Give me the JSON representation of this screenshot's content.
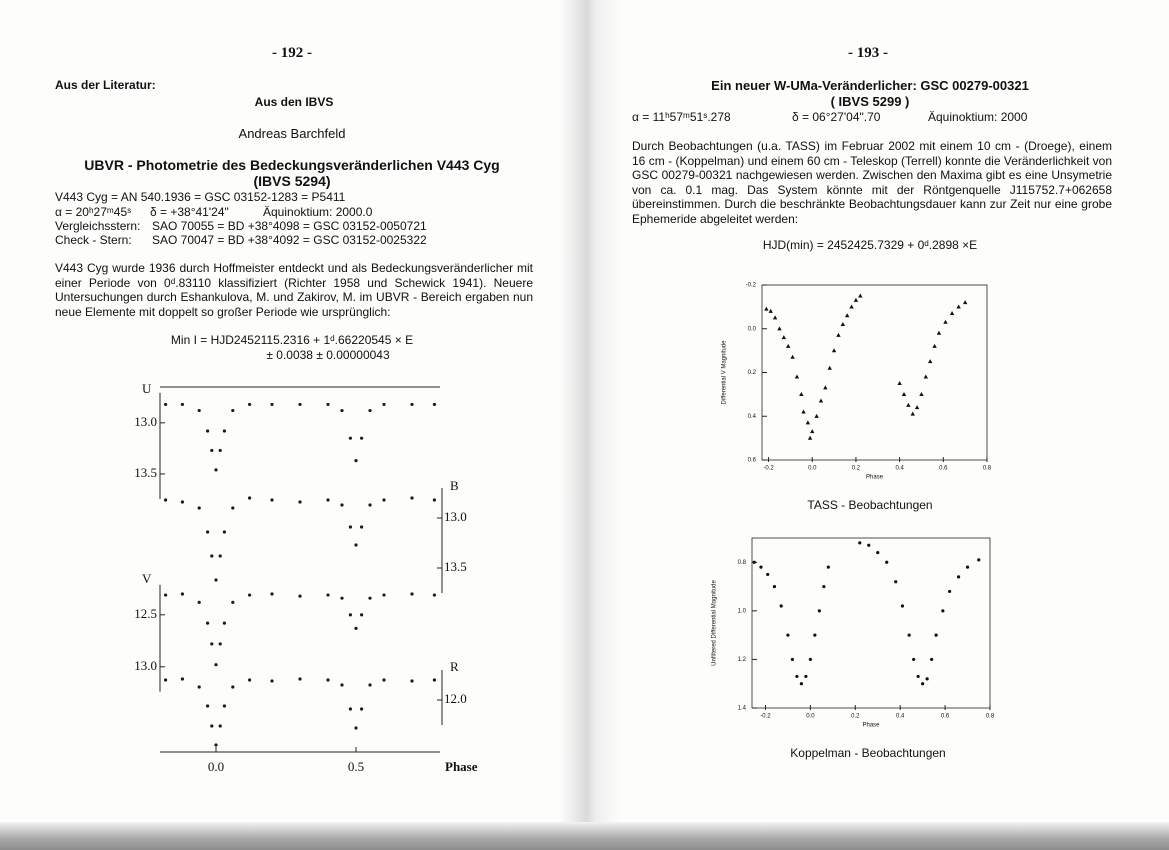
{
  "left_page": {
    "page_number": "- 192 -",
    "section": "Aus der Literatur:",
    "subtitle": "Aus den IBVS",
    "author": "Andreas Barchfeld",
    "title": "UBVR - Photometrie des Bedeckungsveränderlichen V443 Cyg",
    "reference": "(IBVS 5294)",
    "designation": "V443 Cyg = AN 540.1936 = GSC 03152-1283 = P5411",
    "coordinates": [
      "α = 20ʰ27ᵐ45ˢ",
      "δ = +38°41'24\"",
      "Äquinoktium: 2000.0"
    ],
    "comparison": [
      "Vergleichsstern:",
      "SAO 70055 = BD +38°4098 = GSC 03152-0050721"
    ],
    "check": [
      "Check - Stern:",
      "SAO 70047 = BD +38°4092 = GSC 03152-0025322"
    ],
    "paragraph": "V443 Cyg wurde 1936 durch Hoffmeister entdeckt und als Bedeckungsveränderlicher mit einer Periode von 0ᵈ.83110 klassifiziert (Richter 1958 und Schewick 1941). Neuere Untersuchungen durch Eshankulova, M. und Zakirov, M. im UBVR - Bereich ergaben nun neue Elemente mit doppelt so großer Periode wie ursprünglich:",
    "formula": [
      "Min I = HJD2452115.2316 + 1ᵈ.66220545 × E",
      "± 0.0038 ± 0.00000043"
    ]
  },
  "right_page": {
    "page_number": "- 193 -",
    "title": "Ein neuer W-UMa-Veränderlicher: GSC 00279-00321",
    "reference": "( IBVS 5299 )",
    "coordinates": [
      "α = 11ʰ57ᵐ51ˢ.278",
      "δ = 06°27'04\".70",
      "Äquinoktium: 2000"
    ],
    "paragraph": "Durch Beobachtungen (u.a. TASS) im Februar 2002 mit einem 10 cm - (Droege), einem 16 cm - (Koppelman) und einem 60 cm - Teleskop (Terrell) konnte die Veränderlichkeit von GSC 00279-00321 nachgewiesen werden. Zwischen den Maxima gibt es eine Unsymetrie von ca. 0.1 mag. Das System könnte mit der Röntgenquelle J115752.7+062658 übereinstimmen. Durch die beschränkte Beobachtungsdauer kann zur Zeit nur eine grobe Ephemeride abgeleitet werden:",
    "formula": "HJD(min) = 2452425.7329 + 0ᵈ.2898 ×E",
    "captions": [
      "TASS - Beobachtungen",
      "Koppelman - Beobachtungen"
    ]
  },
  "chart_data": [
    {
      "type": "scatter",
      "marker": "dot",
      "xlabel": "Phase",
      "xlim": [
        -0.2,
        0.8
      ],
      "xticks": [
        {
          "value": 0,
          "label": "0.0"
        },
        0.5
      ],
      "y_inverted": true,
      "x": [
        -0.18,
        -0.12,
        -0.06,
        -0.03,
        -0.015,
        0,
        0.015,
        0.03,
        0.06,
        0.12,
        0.2,
        0.3,
        0.4,
        0.45,
        0.48,
        0.5,
        0.52,
        0.55,
        0.6,
        0.7,
        0.78
      ],
      "series": [
        {
          "name": "U",
          "axis_side": "left",
          "color": "#1a1a1a",
          "ylim": [
            12.63,
            16.2
          ],
          "yticks": [
            {
              "value": 13,
              "label": "13.0"
            },
            13.5
          ],
          "values": [
            12.82,
            12.82,
            12.88,
            13.08,
            13.27,
            13.46,
            13.27,
            13.08,
            12.88,
            12.82,
            12.82,
            12.82,
            12.82,
            12.88,
            13.15,
            13.37,
            13.15,
            12.88,
            12.82,
            12.82,
            12.82
          ]
        },
        {
          "name": "B",
          "axis_side": "right",
          "color": "#1a1a1a",
          "ylim": [
            11.67,
            15.32
          ],
          "yticks": [
            {
              "value": 13,
              "label": "13.0"
            },
            13.5
          ],
          "values": [
            12.82,
            12.84,
            12.9,
            13.14,
            13.38,
            13.62,
            13.38,
            13.14,
            12.9,
            12.8,
            12.82,
            12.84,
            12.82,
            12.87,
            13.09,
            13.27,
            13.09,
            12.87,
            12.82,
            12.8,
            12.82
          ]
        },
        {
          "name": "V",
          "axis_side": "left",
          "color": "#1a1a1a",
          "ylim": [
            10.29,
            13.8
          ],
          "yticks": [
            12.5,
            {
              "value": 13,
              "label": "13.0"
            }
          ],
          "values": [
            12.31,
            12.3,
            12.38,
            12.58,
            12.78,
            12.98,
            12.78,
            12.58,
            12.38,
            12.31,
            12.3,
            12.32,
            12.31,
            12.34,
            12.5,
            12.63,
            12.5,
            12.34,
            12.31,
            12.3,
            12.31
          ]
        },
        {
          "name": "R",
          "axis_side": "right",
          "color": "#1a1a1a",
          "ylim": [
            8.85,
            12.5
          ],
          "yticks": [
            {
              "value": 12,
              "label": "12.0"
            }
          ],
          "values": [
            11.8,
            11.79,
            11.87,
            12.06,
            12.26,
            12.45,
            12.26,
            12.06,
            11.87,
            11.8,
            11.81,
            11.79,
            11.8,
            11.85,
            12.09,
            12.28,
            12.09,
            11.85,
            11.8,
            11.81,
            11.8
          ]
        }
      ]
    },
    {
      "type": "scatter",
      "marker": "triangle",
      "xlabel": "Phase",
      "ylabel": "Differential V Magnitude",
      "xlim": [
        -0.23,
        0.8
      ],
      "xticks": [
        -0.2,
        {
          "value": 0,
          "label": "0.0"
        },
        0.2,
        0.4,
        0.6,
        0.8
      ],
      "ylim": [
        -0.2,
        0.6
      ],
      "y_inverted": true,
      "yticks": [
        -0.2,
        {
          "value": 0,
          "label": "0.0"
        },
        0.2,
        0.4,
        0.6
      ],
      "x": [
        -0.21,
        -0.19,
        -0.17,
        -0.15,
        -0.13,
        -0.11,
        -0.09,
        -0.07,
        -0.05,
        -0.04,
        -0.02,
        -0.01,
        0,
        0.02,
        0.04,
        0.06,
        0.08,
        0.1,
        0.12,
        0.14,
        0.16,
        0.18,
        0.2,
        0.22,
        0.4,
        0.42,
        0.44,
        0.46,
        0.48,
        0.5,
        0.52,
        0.54,
        0.56,
        0.58,
        0.61,
        0.64,
        0.67,
        0.7
      ],
      "series": [
        {
          "color": "#111111",
          "values": [
            -0.09,
            -0.08,
            -0.05,
            0,
            0.04,
            0.08,
            0.13,
            0.22,
            0.3,
            0.38,
            0.43,
            0.5,
            0.47,
            0.4,
            0.33,
            0.27,
            0.18,
            0.1,
            0.03,
            -0.02,
            -0.06,
            -0.1,
            -0.13,
            -0.15,
            0.25,
            0.3,
            0.35,
            0.39,
            0.36,
            0.3,
            0.22,
            0.15,
            0.08,
            0.02,
            -0.03,
            -0.07,
            -0.1,
            -0.12
          ]
        }
      ]
    },
    {
      "type": "scatter",
      "marker": "dot",
      "xlabel": "Phase",
      "ylabel": "Unfiltered Differential Magnitude",
      "xlim": [
        -0.26,
        0.8
      ],
      "xticks": [
        -0.2,
        {
          "value": 0,
          "label": "0.0"
        },
        0.2,
        0.4,
        0.6,
        0.8
      ],
      "ylim": [
        0.7,
        1.4
      ],
      "y_inverted": true,
      "yticks": [
        0.8,
        {
          "value": 1,
          "label": "1.0"
        },
        1.2,
        1.4
      ],
      "x": [
        -0.25,
        -0.22,
        -0.19,
        -0.16,
        -0.13,
        -0.1,
        -0.08,
        -0.06,
        -0.04,
        -0.02,
        0,
        0.02,
        0.04,
        0.06,
        0.08,
        0.22,
        0.26,
        0.3,
        0.34,
        0.38,
        0.41,
        0.44,
        0.46,
        0.48,
        0.5,
        0.52,
        0.54,
        0.56,
        0.59,
        0.62,
        0.66,
        0.7,
        0.75
      ],
      "series": [
        {
          "color": "#111111",
          "values": [
            0.8,
            0.82,
            0.85,
            0.9,
            0.98,
            1.1,
            1.2,
            1.27,
            1.3,
            1.27,
            1.2,
            1.1,
            1,
            0.9,
            0.82,
            0.72,
            0.73,
            0.76,
            0.8,
            0.88,
            0.98,
            1.1,
            1.2,
            1.27,
            1.3,
            1.28,
            1.2,
            1.1,
            1,
            0.92,
            0.86,
            0.82,
            0.79
          ]
        }
      ]
    }
  ]
}
